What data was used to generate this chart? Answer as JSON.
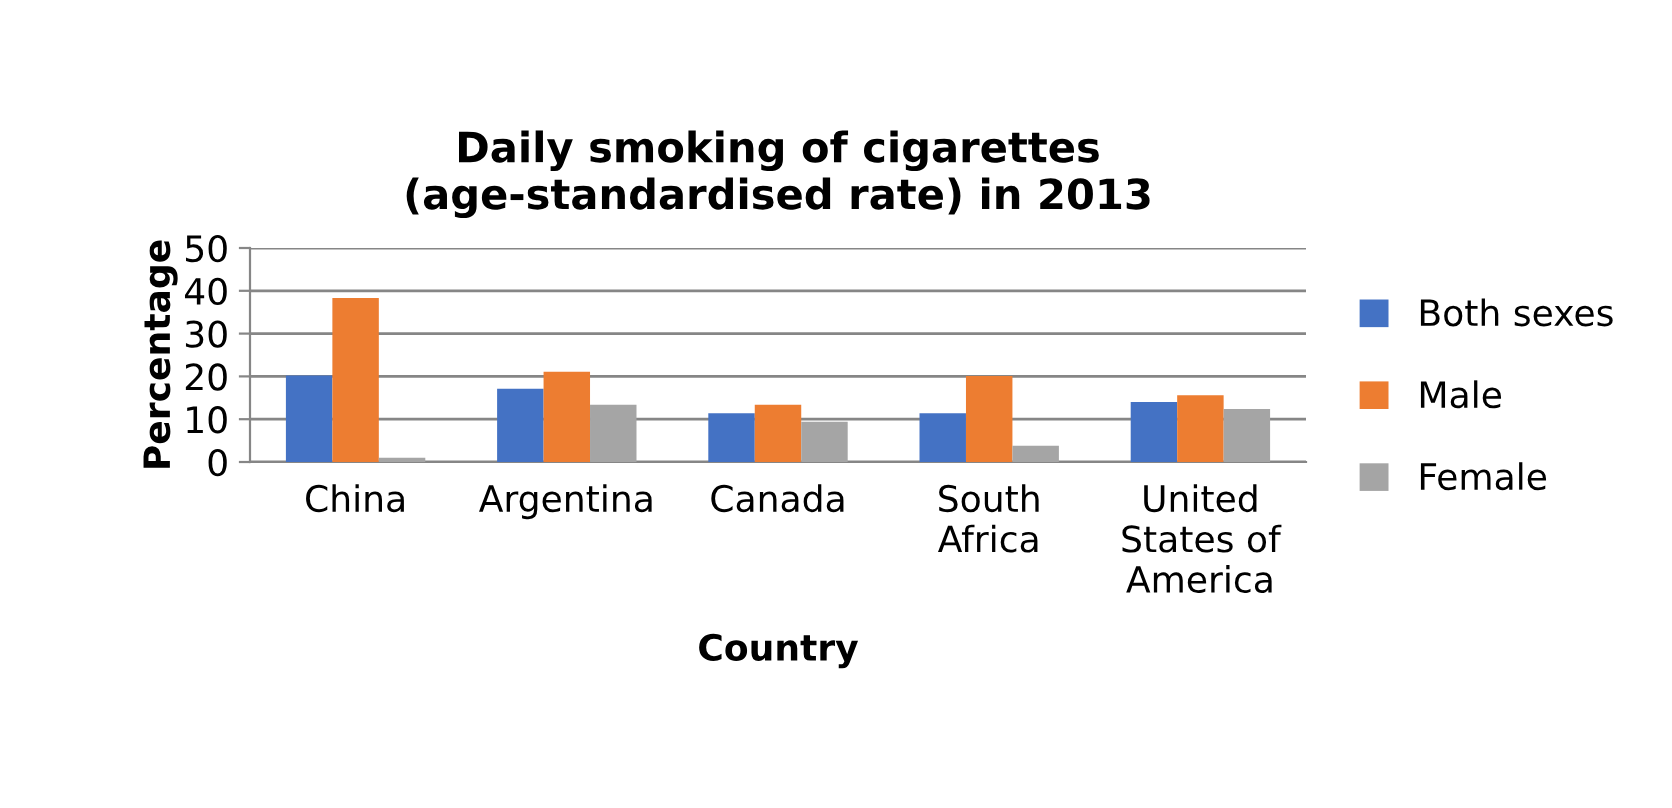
{
  "chart_data": {
    "type": "bar",
    "title": "Daily smoking of cigarettes\n(age-standardised rate) in 2013",
    "xlabel": "Country",
    "ylabel": "Percentage",
    "categories": [
      "China",
      "Argentina",
      "Canada",
      "South\nAfrica",
      "United\nStates of\nAmerica"
    ],
    "series": [
      {
        "name": "Both sexes",
        "color": "#4472c4",
        "values": [
          20.2,
          17.1,
          11.4,
          11.4,
          14.0
        ]
      },
      {
        "name": "Male",
        "color": "#ed7d31",
        "values": [
          38.3,
          21.1,
          13.4,
          20.1,
          15.6
        ]
      },
      {
        "name": "Female",
        "color": "#a5a5a5",
        "values": [
          1.0,
          13.4,
          9.4,
          3.8,
          12.4
        ]
      }
    ],
    "ylim": [
      0,
      50
    ],
    "yticks": [
      0,
      10,
      20,
      30,
      40,
      50
    ],
    "grid": "y",
    "legend": "right"
  }
}
